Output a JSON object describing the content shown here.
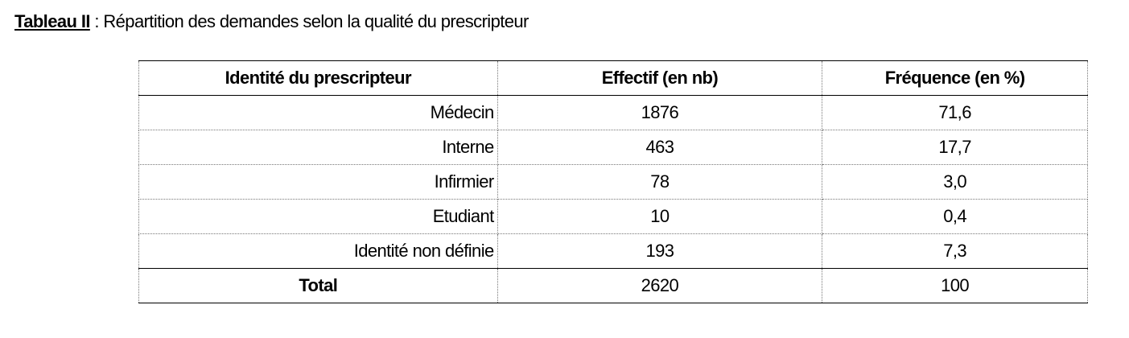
{
  "header": {
    "label": "Tableau II",
    "title": ": Répartition des demandes selon la qualité du prescripteur"
  },
  "table": {
    "columns": [
      "Identité du prescripteur",
      "Effectif (en nb)",
      "Fréquence (en %)"
    ],
    "rows": [
      [
        "Médecin",
        "1876",
        "71,6"
      ],
      [
        "Interne",
        "463",
        "17,7"
      ],
      [
        "Infirmier",
        "78",
        "3,0"
      ],
      [
        "Etudiant",
        "10",
        "0,4"
      ],
      [
        "Identité non définie",
        "193",
        "7,3"
      ]
    ],
    "total": [
      "Total",
      "2620",
      "100"
    ]
  }
}
